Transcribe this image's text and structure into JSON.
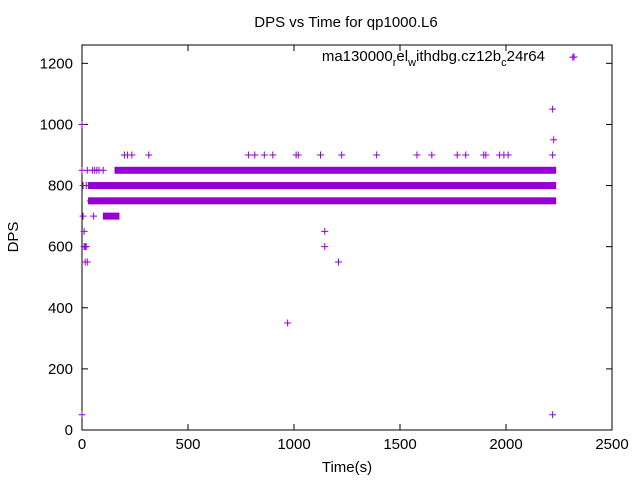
{
  "chart_data": {
    "type": "scatter",
    "title": "DPS vs Time for qp1000.L6",
    "xlabel": "Time(s)",
    "ylabel": "DPS",
    "xlim": [
      0,
      2500
    ],
    "ylim": [
      0,
      1260
    ],
    "x_ticks": [
      0,
      500,
      1000,
      1500,
      2000,
      2500
    ],
    "y_ticks": [
      0,
      200,
      400,
      600,
      800,
      1000,
      1200
    ],
    "grid": false,
    "legend_position": "top-right",
    "marker": "plus",
    "color": "#9400d3",
    "series": [
      {
        "legend": {
          "text": "ma130000",
          "sub1": "r",
          "mid1": "el",
          "sub2": "w",
          "mid2": "ithdbg.cz12b",
          "sub3": "c",
          "end": "24r64"
        },
        "bands": [
          {
            "y": 800,
            "x_start": 45,
            "x_end": 2220
          },
          {
            "y": 850,
            "x_start": 170,
            "x_end": 2220
          },
          {
            "y": 750,
            "x_start": 45,
            "x_end": 2220
          },
          {
            "y": 700,
            "x_start": 115,
            "x_end": 160
          }
        ],
        "points": [
          [
            0,
            1000
          ],
          [
            0,
            50
          ],
          [
            0,
            850
          ],
          [
            5,
            800
          ],
          [
            5,
            700
          ],
          [
            10,
            650
          ],
          [
            10,
            600
          ],
          [
            15,
            600
          ],
          [
            20,
            600
          ],
          [
            15,
            550
          ],
          [
            25,
            550
          ],
          [
            20,
            800
          ],
          [
            25,
            850
          ],
          [
            30,
            800
          ],
          [
            40,
            750
          ],
          [
            50,
            850
          ],
          [
            55,
            700
          ],
          [
            60,
            850
          ],
          [
            70,
            850
          ],
          [
            80,
            850
          ],
          [
            90,
            750
          ],
          [
            100,
            850
          ],
          [
            110,
            800
          ],
          [
            200,
            900
          ],
          [
            215,
            900
          ],
          [
            235,
            900
          ],
          [
            315,
            900
          ],
          [
            785,
            900
          ],
          [
            815,
            900
          ],
          [
            860,
            900
          ],
          [
            900,
            900
          ],
          [
            1010,
            900
          ],
          [
            1020,
            900
          ],
          [
            1125,
            900
          ],
          [
            1225,
            900
          ],
          [
            1390,
            900
          ],
          [
            1580,
            900
          ],
          [
            1650,
            900
          ],
          [
            1770,
            900
          ],
          [
            1810,
            900
          ],
          [
            1895,
            900
          ],
          [
            1905,
            900
          ],
          [
            1970,
            900
          ],
          [
            1990,
            900
          ],
          [
            2010,
            900
          ],
          [
            2220,
            900
          ],
          [
            970,
            350
          ],
          [
            1145,
            650
          ],
          [
            1145,
            600
          ],
          [
            1210,
            550
          ],
          [
            2220,
            1050
          ],
          [
            2225,
            950
          ],
          [
            2220,
            50
          ],
          [
            2315,
            1220
          ]
        ]
      }
    ]
  }
}
